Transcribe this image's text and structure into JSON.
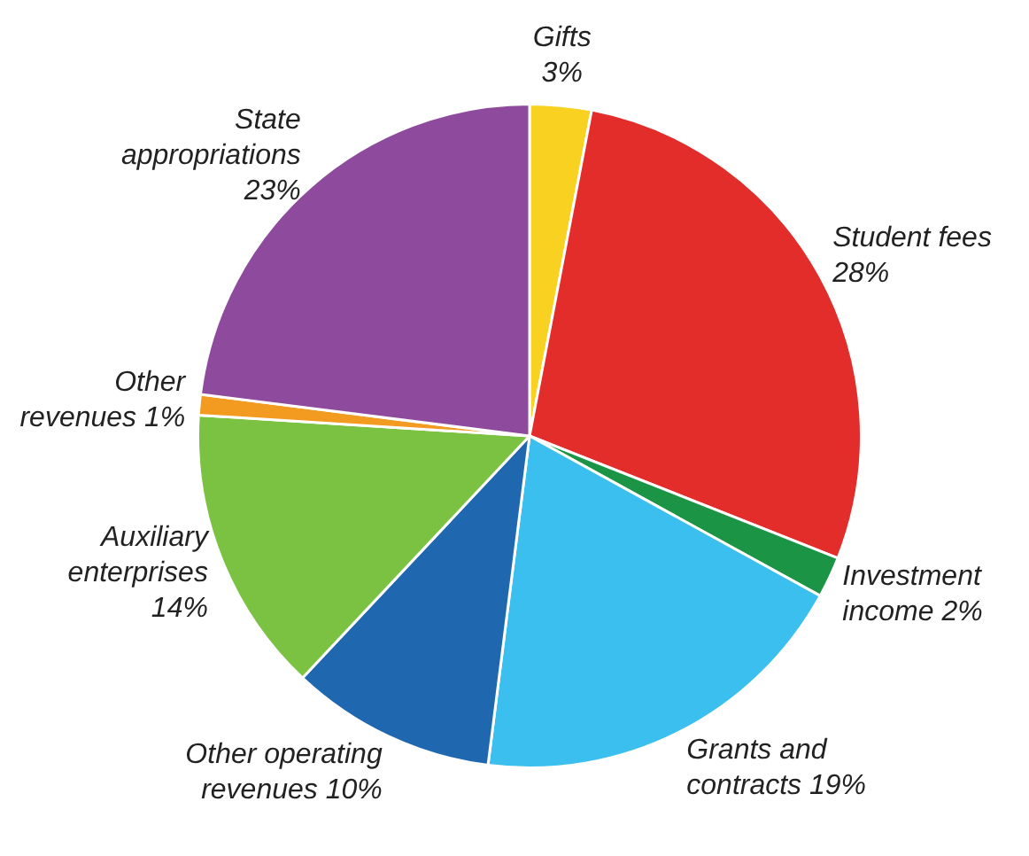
{
  "chart_data": {
    "type": "pie",
    "categories": [
      "Gifts",
      "Student fees",
      "Investment income",
      "Grants and contracts",
      "Other operating revenues",
      "Auxiliary enterprises",
      "Other revenues",
      "State appropriations"
    ],
    "values": [
      3,
      28,
      2,
      19,
      10,
      14,
      1,
      23
    ],
    "colors": [
      "#f9d121",
      "#e32d2a",
      "#1b9446",
      "#3bbfee",
      "#1f68b0",
      "#7cc242",
      "#f39a20",
      "#8e4a9c"
    ],
    "value_labels": [
      "3%",
      "28%",
      "2%",
      "19%",
      "10%",
      "14%",
      "1%",
      "23%"
    ],
    "legend": false
  }
}
